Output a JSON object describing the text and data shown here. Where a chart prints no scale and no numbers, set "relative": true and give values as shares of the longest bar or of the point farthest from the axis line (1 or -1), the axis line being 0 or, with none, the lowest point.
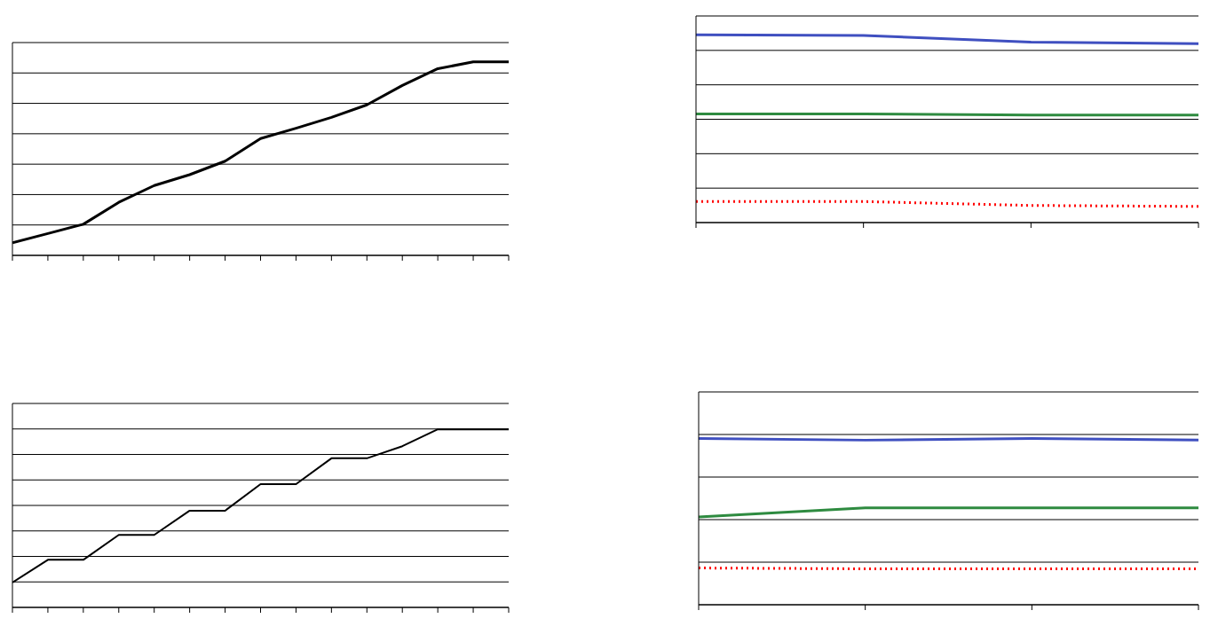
{
  "chart_data": [
    {
      "type": "line",
      "relative": true,
      "categories": [
        null,
        null,
        null,
        null,
        null,
        null,
        null,
        null,
        null,
        null,
        null,
        null,
        null,
        null,
        null
      ],
      "grid": "y",
      "legend": false,
      "marker": "none",
      "series": [
        {
          "color": "#000000",
          "line_style": "solid",
          "values": [
            0.065,
            0.113,
            0.161,
            0.274,
            0.361,
            0.417,
            0.487,
            0.604,
            0.657,
            0.713,
            0.778,
            0.878,
            0.965,
            1,
            1
          ]
        }
      ]
    },
    {
      "type": "line",
      "relative": true,
      "categories": [
        null,
        null,
        null,
        null
      ],
      "grid": "y",
      "legend": false,
      "marker": "none",
      "series": [
        {
          "color": "#3f4fc0",
          "line_style": "solid",
          "values": [
            1,
            0.996,
            0.961,
            0.953
          ]
        },
        {
          "color": "#2e8b40",
          "line_style": "solid",
          "values": [
            0.578,
            0.578,
            0.573,
            0.573
          ]
        },
        {
          "color": "#ff0000",
          "line_style": "dotted",
          "values": [
            0.112,
            0.112,
            0.091,
            0.086
          ]
        }
      ]
    },
    {
      "type": "line",
      "relative": true,
      "categories": [
        null,
        null,
        null,
        null,
        null,
        null,
        null,
        null,
        null,
        null,
        null,
        null,
        null,
        null,
        null
      ],
      "grid": "y",
      "legend": false,
      "marker": "none",
      "series": [
        {
          "color": "#000000",
          "line_style": "solid",
          "values": [
            0.14,
            0.267,
            0.267,
            0.407,
            0.407,
            0.543,
            0.543,
            0.692,
            0.692,
            0.837,
            0.837,
            0.905,
            1,
            1,
            1
          ]
        }
      ]
    },
    {
      "type": "line",
      "relative": true,
      "categories": [
        null,
        null,
        null,
        null
      ],
      "grid": "y",
      "legend": false,
      "marker": "none",
      "series": [
        {
          "color": "#3f4fc0",
          "line_style": "solid",
          "values": [
            1,
            0.99,
            1,
            0.99
          ]
        },
        {
          "color": "#2e8b40",
          "line_style": "solid",
          "values": [
            0.528,
            0.583,
            0.583,
            0.583
          ]
        },
        {
          "color": "#ff0000",
          "line_style": "dotted",
          "values": [
            0.221,
            0.216,
            0.216,
            0.216
          ]
        }
      ]
    }
  ]
}
